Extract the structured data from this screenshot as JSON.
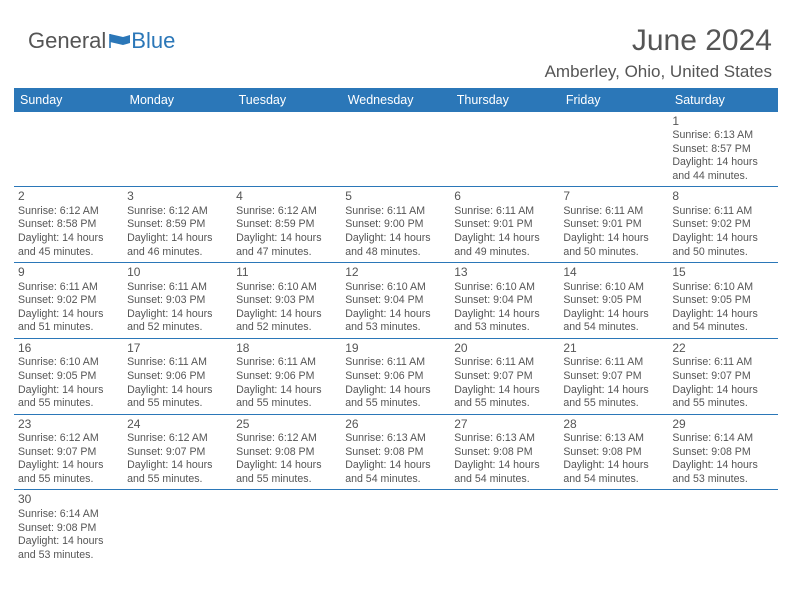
{
  "logo": {
    "general": "General",
    "blue": "Blue"
  },
  "title": "June 2024",
  "location": "Amberley, Ohio, United States",
  "colors": {
    "brand": "#2b77b8",
    "bg": "#ffffff",
    "text": "#555555"
  },
  "day_headers": [
    "Sunday",
    "Monday",
    "Tuesday",
    "Wednesday",
    "Thursday",
    "Friday",
    "Saturday"
  ],
  "grid": [
    [
      null,
      null,
      null,
      null,
      null,
      null,
      {
        "n": "1",
        "sunrise": "Sunrise: 6:13 AM",
        "sunset": "Sunset: 8:57 PM",
        "dl1": "Daylight: 14 hours",
        "dl2": "and 44 minutes."
      }
    ],
    [
      {
        "n": "2",
        "sunrise": "Sunrise: 6:12 AM",
        "sunset": "Sunset: 8:58 PM",
        "dl1": "Daylight: 14 hours",
        "dl2": "and 45 minutes."
      },
      {
        "n": "3",
        "sunrise": "Sunrise: 6:12 AM",
        "sunset": "Sunset: 8:59 PM",
        "dl1": "Daylight: 14 hours",
        "dl2": "and 46 minutes."
      },
      {
        "n": "4",
        "sunrise": "Sunrise: 6:12 AM",
        "sunset": "Sunset: 8:59 PM",
        "dl1": "Daylight: 14 hours",
        "dl2": "and 47 minutes."
      },
      {
        "n": "5",
        "sunrise": "Sunrise: 6:11 AM",
        "sunset": "Sunset: 9:00 PM",
        "dl1": "Daylight: 14 hours",
        "dl2": "and 48 minutes."
      },
      {
        "n": "6",
        "sunrise": "Sunrise: 6:11 AM",
        "sunset": "Sunset: 9:01 PM",
        "dl1": "Daylight: 14 hours",
        "dl2": "and 49 minutes."
      },
      {
        "n": "7",
        "sunrise": "Sunrise: 6:11 AM",
        "sunset": "Sunset: 9:01 PM",
        "dl1": "Daylight: 14 hours",
        "dl2": "and 50 minutes."
      },
      {
        "n": "8",
        "sunrise": "Sunrise: 6:11 AM",
        "sunset": "Sunset: 9:02 PM",
        "dl1": "Daylight: 14 hours",
        "dl2": "and 50 minutes."
      }
    ],
    [
      {
        "n": "9",
        "sunrise": "Sunrise: 6:11 AM",
        "sunset": "Sunset: 9:02 PM",
        "dl1": "Daylight: 14 hours",
        "dl2": "and 51 minutes."
      },
      {
        "n": "10",
        "sunrise": "Sunrise: 6:11 AM",
        "sunset": "Sunset: 9:03 PM",
        "dl1": "Daylight: 14 hours",
        "dl2": "and 52 minutes."
      },
      {
        "n": "11",
        "sunrise": "Sunrise: 6:10 AM",
        "sunset": "Sunset: 9:03 PM",
        "dl1": "Daylight: 14 hours",
        "dl2": "and 52 minutes."
      },
      {
        "n": "12",
        "sunrise": "Sunrise: 6:10 AM",
        "sunset": "Sunset: 9:04 PM",
        "dl1": "Daylight: 14 hours",
        "dl2": "and 53 minutes."
      },
      {
        "n": "13",
        "sunrise": "Sunrise: 6:10 AM",
        "sunset": "Sunset: 9:04 PM",
        "dl1": "Daylight: 14 hours",
        "dl2": "and 53 minutes."
      },
      {
        "n": "14",
        "sunrise": "Sunrise: 6:10 AM",
        "sunset": "Sunset: 9:05 PM",
        "dl1": "Daylight: 14 hours",
        "dl2": "and 54 minutes."
      },
      {
        "n": "15",
        "sunrise": "Sunrise: 6:10 AM",
        "sunset": "Sunset: 9:05 PM",
        "dl1": "Daylight: 14 hours",
        "dl2": "and 54 minutes."
      }
    ],
    [
      {
        "n": "16",
        "sunrise": "Sunrise: 6:10 AM",
        "sunset": "Sunset: 9:05 PM",
        "dl1": "Daylight: 14 hours",
        "dl2": "and 55 minutes."
      },
      {
        "n": "17",
        "sunrise": "Sunrise: 6:11 AM",
        "sunset": "Sunset: 9:06 PM",
        "dl1": "Daylight: 14 hours",
        "dl2": "and 55 minutes."
      },
      {
        "n": "18",
        "sunrise": "Sunrise: 6:11 AM",
        "sunset": "Sunset: 9:06 PM",
        "dl1": "Daylight: 14 hours",
        "dl2": "and 55 minutes."
      },
      {
        "n": "19",
        "sunrise": "Sunrise: 6:11 AM",
        "sunset": "Sunset: 9:06 PM",
        "dl1": "Daylight: 14 hours",
        "dl2": "and 55 minutes."
      },
      {
        "n": "20",
        "sunrise": "Sunrise: 6:11 AM",
        "sunset": "Sunset: 9:07 PM",
        "dl1": "Daylight: 14 hours",
        "dl2": "and 55 minutes."
      },
      {
        "n": "21",
        "sunrise": "Sunrise: 6:11 AM",
        "sunset": "Sunset: 9:07 PM",
        "dl1": "Daylight: 14 hours",
        "dl2": "and 55 minutes."
      },
      {
        "n": "22",
        "sunrise": "Sunrise: 6:11 AM",
        "sunset": "Sunset: 9:07 PM",
        "dl1": "Daylight: 14 hours",
        "dl2": "and 55 minutes."
      }
    ],
    [
      {
        "n": "23",
        "sunrise": "Sunrise: 6:12 AM",
        "sunset": "Sunset: 9:07 PM",
        "dl1": "Daylight: 14 hours",
        "dl2": "and 55 minutes."
      },
      {
        "n": "24",
        "sunrise": "Sunrise: 6:12 AM",
        "sunset": "Sunset: 9:07 PM",
        "dl1": "Daylight: 14 hours",
        "dl2": "and 55 minutes."
      },
      {
        "n": "25",
        "sunrise": "Sunrise: 6:12 AM",
        "sunset": "Sunset: 9:08 PM",
        "dl1": "Daylight: 14 hours",
        "dl2": "and 55 minutes."
      },
      {
        "n": "26",
        "sunrise": "Sunrise: 6:13 AM",
        "sunset": "Sunset: 9:08 PM",
        "dl1": "Daylight: 14 hours",
        "dl2": "and 54 minutes."
      },
      {
        "n": "27",
        "sunrise": "Sunrise: 6:13 AM",
        "sunset": "Sunset: 9:08 PM",
        "dl1": "Daylight: 14 hours",
        "dl2": "and 54 minutes."
      },
      {
        "n": "28",
        "sunrise": "Sunrise: 6:13 AM",
        "sunset": "Sunset: 9:08 PM",
        "dl1": "Daylight: 14 hours",
        "dl2": "and 54 minutes."
      },
      {
        "n": "29",
        "sunrise": "Sunrise: 6:14 AM",
        "sunset": "Sunset: 9:08 PM",
        "dl1": "Daylight: 14 hours",
        "dl2": "and 53 minutes."
      }
    ],
    [
      {
        "n": "30",
        "sunrise": "Sunrise: 6:14 AM",
        "sunset": "Sunset: 9:08 PM",
        "dl1": "Daylight: 14 hours",
        "dl2": "and 53 minutes."
      },
      null,
      null,
      null,
      null,
      null,
      null
    ]
  ]
}
